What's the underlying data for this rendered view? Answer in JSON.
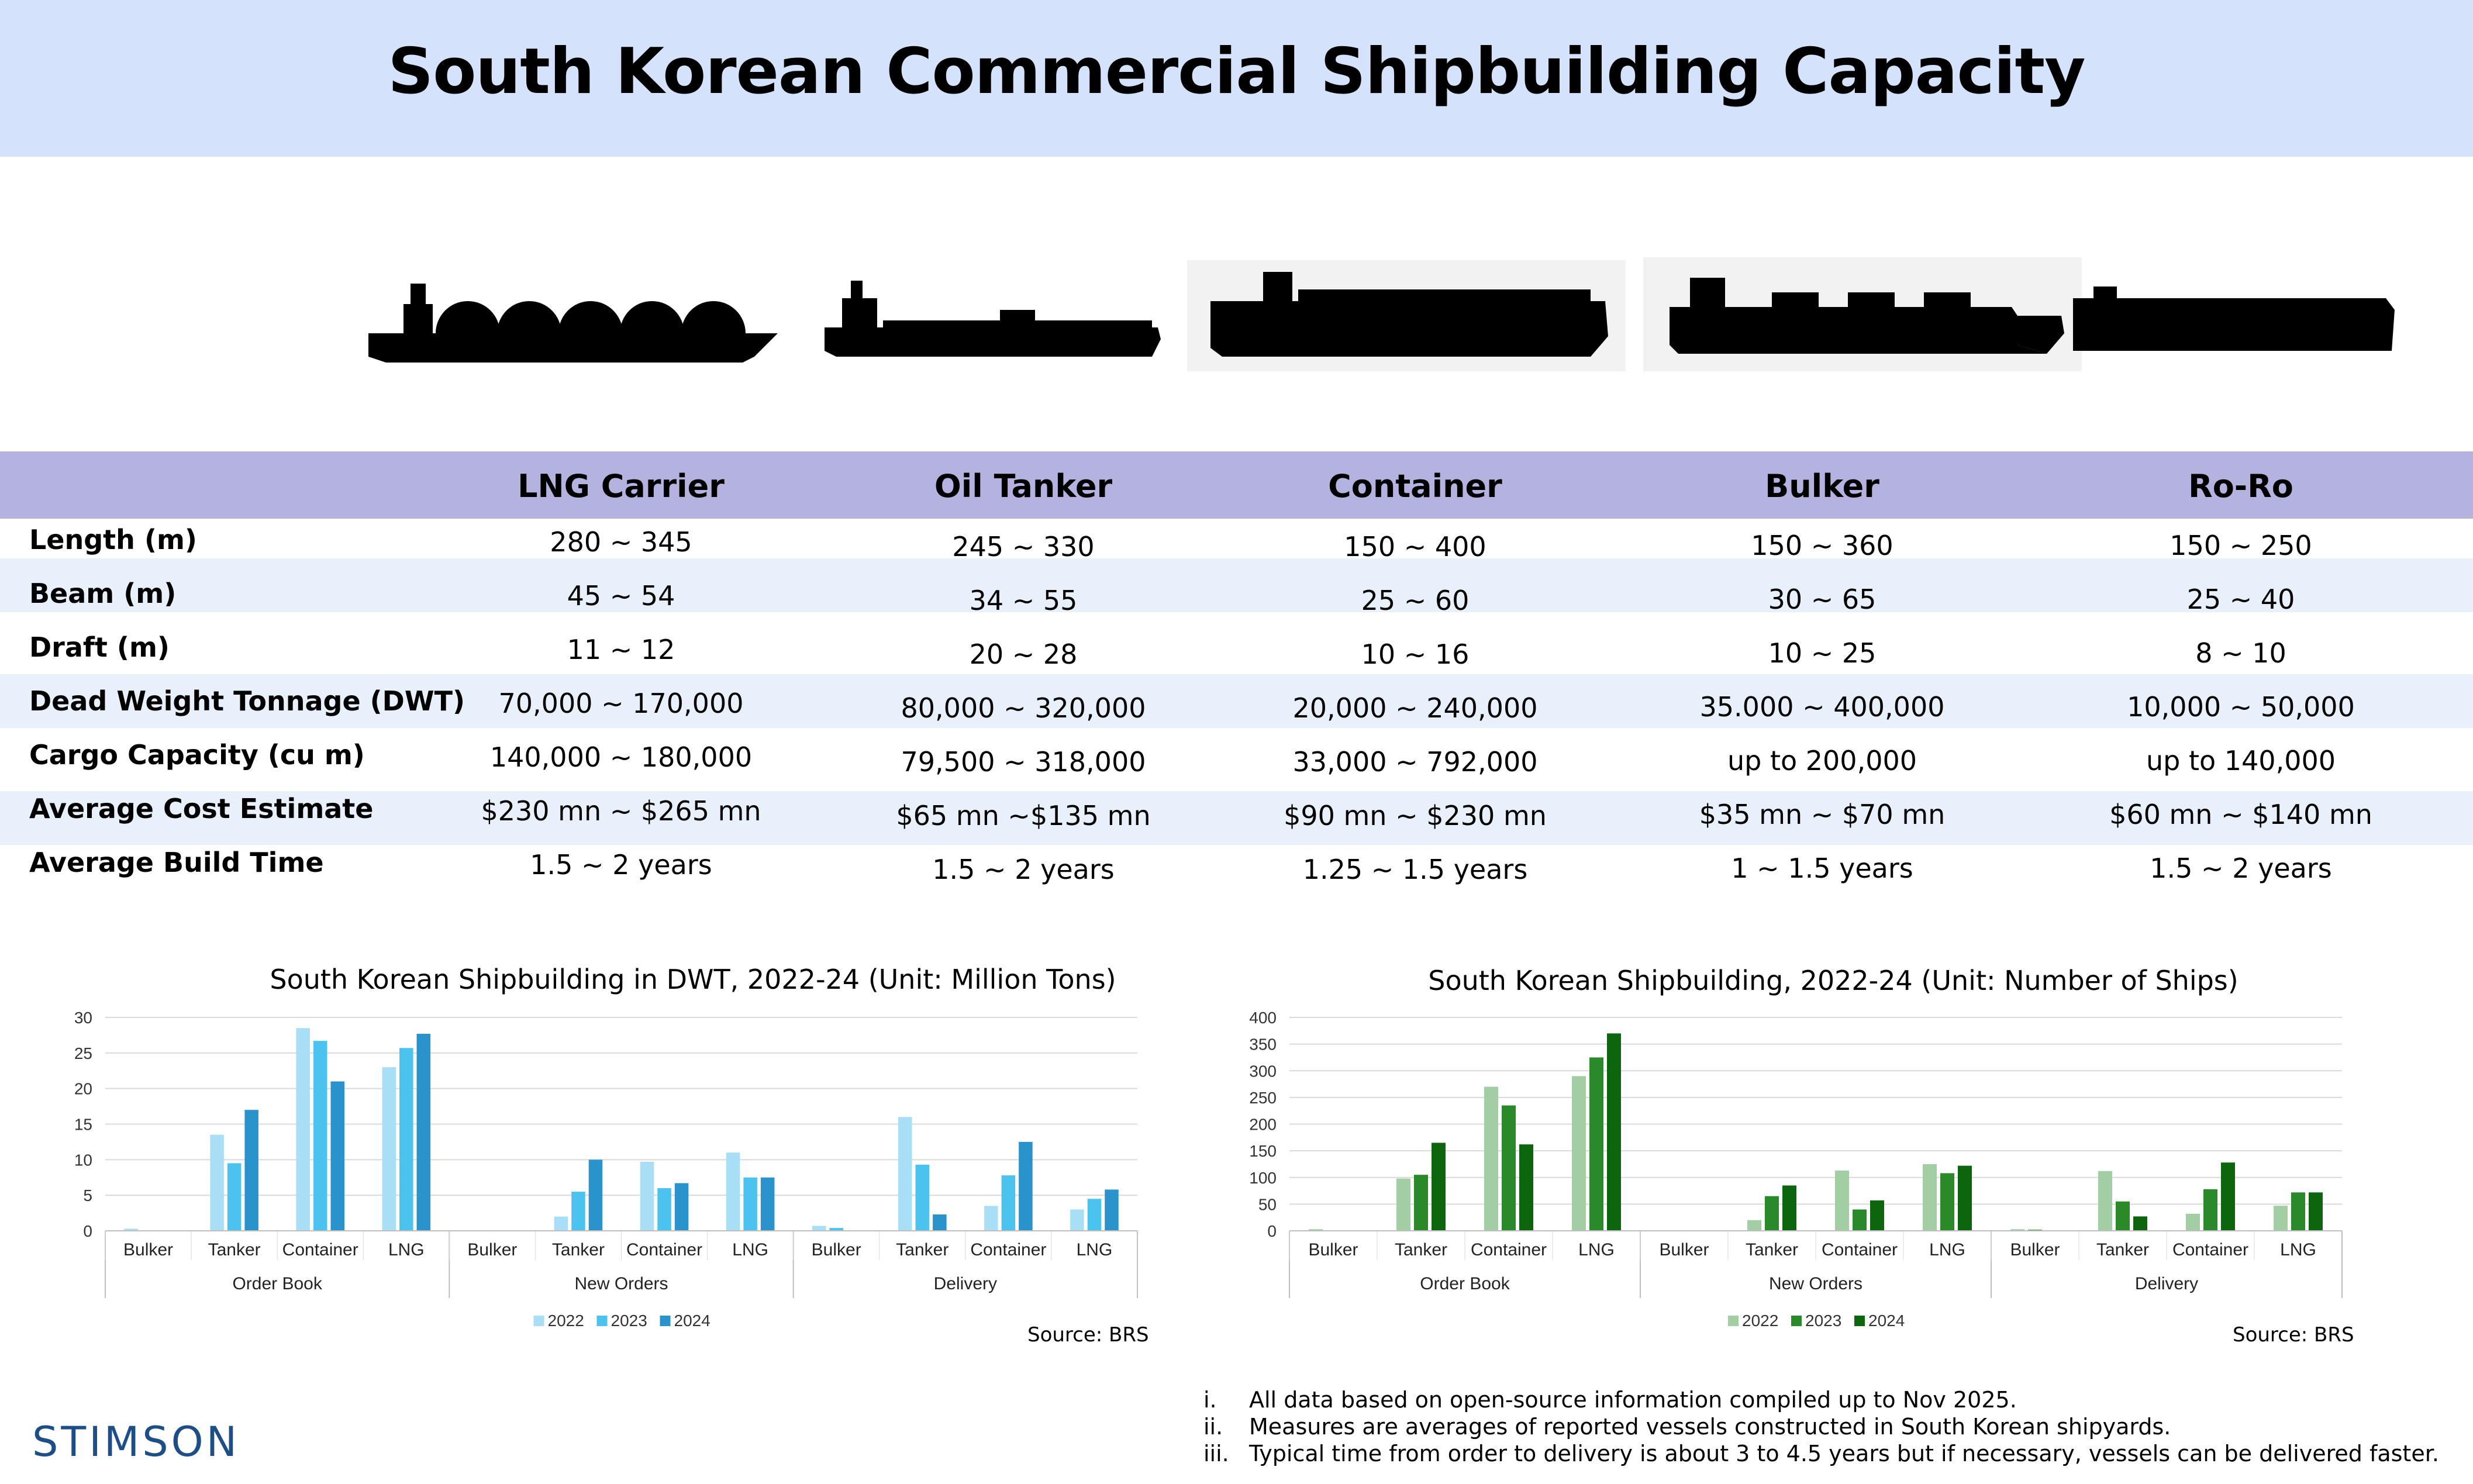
{
  "title": "South Korean Commercial Shipbuilding Capacity",
  "table": {
    "columns": [
      "LNG Carrier",
      "Oil Tanker",
      "Container",
      "Bulker",
      "Ro-Ro"
    ],
    "rows": [
      {
        "label": "Length (m)",
        "values": [
          "280 ~ 345",
          "245 ~ 330",
          "150 ~ 400",
          "150 ~ 360",
          "150 ~ 250"
        ]
      },
      {
        "label": "Beam (m)",
        "values": [
          "45 ~ 54",
          "34 ~ 55",
          "25 ~ 60",
          "30 ~ 65",
          "25 ~ 40"
        ]
      },
      {
        "label": "Draft (m)",
        "values": [
          "11 ~ 12",
          "20 ~ 28",
          "10 ~ 16",
          "10 ~ 25",
          "8 ~ 10"
        ]
      },
      {
        "label": "Dead Weight Tonnage (DWT)",
        "values": [
          "70,000 ~ 170,000",
          "80,000 ~ 320,000",
          "20,000 ~ 240,000",
          "35.000 ~ 400,000",
          "10,000 ~ 50,000"
        ]
      },
      {
        "label": "Cargo Capacity (cu m)",
        "values": [
          "140,000 ~ 180,000",
          "79,500 ~ 318,000",
          "33,000 ~ 792,000",
          "up to 200,000",
          "up to 140,000"
        ]
      },
      {
        "label": "Average Cost Estimate",
        "values": [
          "$230 mn ~ $265 mn",
          "$65 mn ~$135 mn",
          "$90 mn ~ $230 mn",
          "$35 mn ~ $70 mn",
          "$60 mn ~ $140 mn"
        ]
      },
      {
        "label": "Average Build Time",
        "values": [
          "1.5 ~ 2 years",
          "1.5 ~ 2 years",
          "1.25 ~ 1.5 years",
          "1 ~ 1.5 years",
          "1.5 ~ 2 years"
        ]
      }
    ]
  },
  "colors": {
    "header_bg": "#d4e2fb",
    "table_header_bg": "#b4b3e0",
    "row_alt_bg": "#e8f0fb",
    "blue_series": [
      "#a8def6",
      "#4cc3ef",
      "#2b93cc"
    ],
    "green_series": [
      "#a3cda3",
      "#2a8a2a",
      "#0d650d"
    ],
    "logo": "#1d4e86"
  },
  "ship_icons": [
    "lng-carrier-silhouette",
    "oil-tanker-silhouette",
    "container-ship-silhouette",
    "bulker-silhouette",
    "ro-ro-silhouette"
  ],
  "chart_data": [
    {
      "type": "bar",
      "title": "South Korean Shipbuilding in DWT, 2022-24 (Unit: Million Tons)",
      "groups": [
        "Order Book",
        "New Orders",
        "Delivery"
      ],
      "categories": [
        "Bulker",
        "Tanker",
        "Container",
        "LNG"
      ],
      "series": [
        {
          "name": "2022",
          "values": [
            [
              0.3,
              13.5,
              28.5,
              23
            ],
            [
              0,
              2,
              9.7,
              11
            ],
            [
              0.7,
              16,
              3.5,
              3
            ]
          ]
        },
        {
          "name": "2023",
          "values": [
            [
              0,
              9.5,
              26.7,
              25.7
            ],
            [
              0,
              5.5,
              6,
              7.5
            ],
            [
              0.4,
              9.3,
              7.8,
              4.5
            ]
          ]
        },
        {
          "name": "2024",
          "values": [
            [
              0,
              17,
              21,
              27.7
            ],
            [
              0,
              10,
              6.7,
              7.5
            ],
            [
              0,
              2.3,
              12.5,
              5.8
            ]
          ]
        }
      ],
      "yticks": [
        0,
        5,
        10,
        15,
        20,
        25,
        30
      ],
      "ylim": [
        0,
        30
      ],
      "grid": true,
      "legend": "bottom",
      "source": "Source: BRS"
    },
    {
      "type": "bar",
      "title": "South Korean Shipbuilding, 2022-24 (Unit: Number of Ships)",
      "groups": [
        "Order Book",
        "New Orders",
        "Delivery"
      ],
      "categories": [
        "Bulker",
        "Tanker",
        "Container",
        "LNG"
      ],
      "series": [
        {
          "name": "2022",
          "values": [
            [
              3,
              98,
              270,
              290
            ],
            [
              0,
              20,
              113,
              125
            ],
            [
              3,
              112,
              32,
              47
            ]
          ]
        },
        {
          "name": "2023",
          "values": [
            [
              0,
              105,
              235,
              325
            ],
            [
              0,
              65,
              40,
              108
            ],
            [
              2,
              55,
              78,
              72
            ]
          ]
        },
        {
          "name": "2024",
          "values": [
            [
              0,
              165,
              162,
              370
            ],
            [
              0,
              85,
              57,
              122
            ],
            [
              0,
              27,
              128,
              72
            ]
          ]
        }
      ],
      "yticks": [
        0,
        50,
        100,
        150,
        200,
        250,
        300,
        350,
        400
      ],
      "ylim": [
        0,
        400
      ],
      "grid": true,
      "legend": "bottom",
      "source": "Source: BRS"
    }
  ],
  "notes": [
    {
      "num": "i.",
      "text": "All data based on open-source information compiled up to Nov 2025."
    },
    {
      "num": "ii.",
      "text": "Measures are averages of reported vessels constructed in South Korean shipyards."
    },
    {
      "num": "iii.",
      "text": "Typical time from order to delivery is about 3 to 4.5 years but if necessary, vessels can be delivered faster."
    }
  ],
  "logo": "STIMSON"
}
